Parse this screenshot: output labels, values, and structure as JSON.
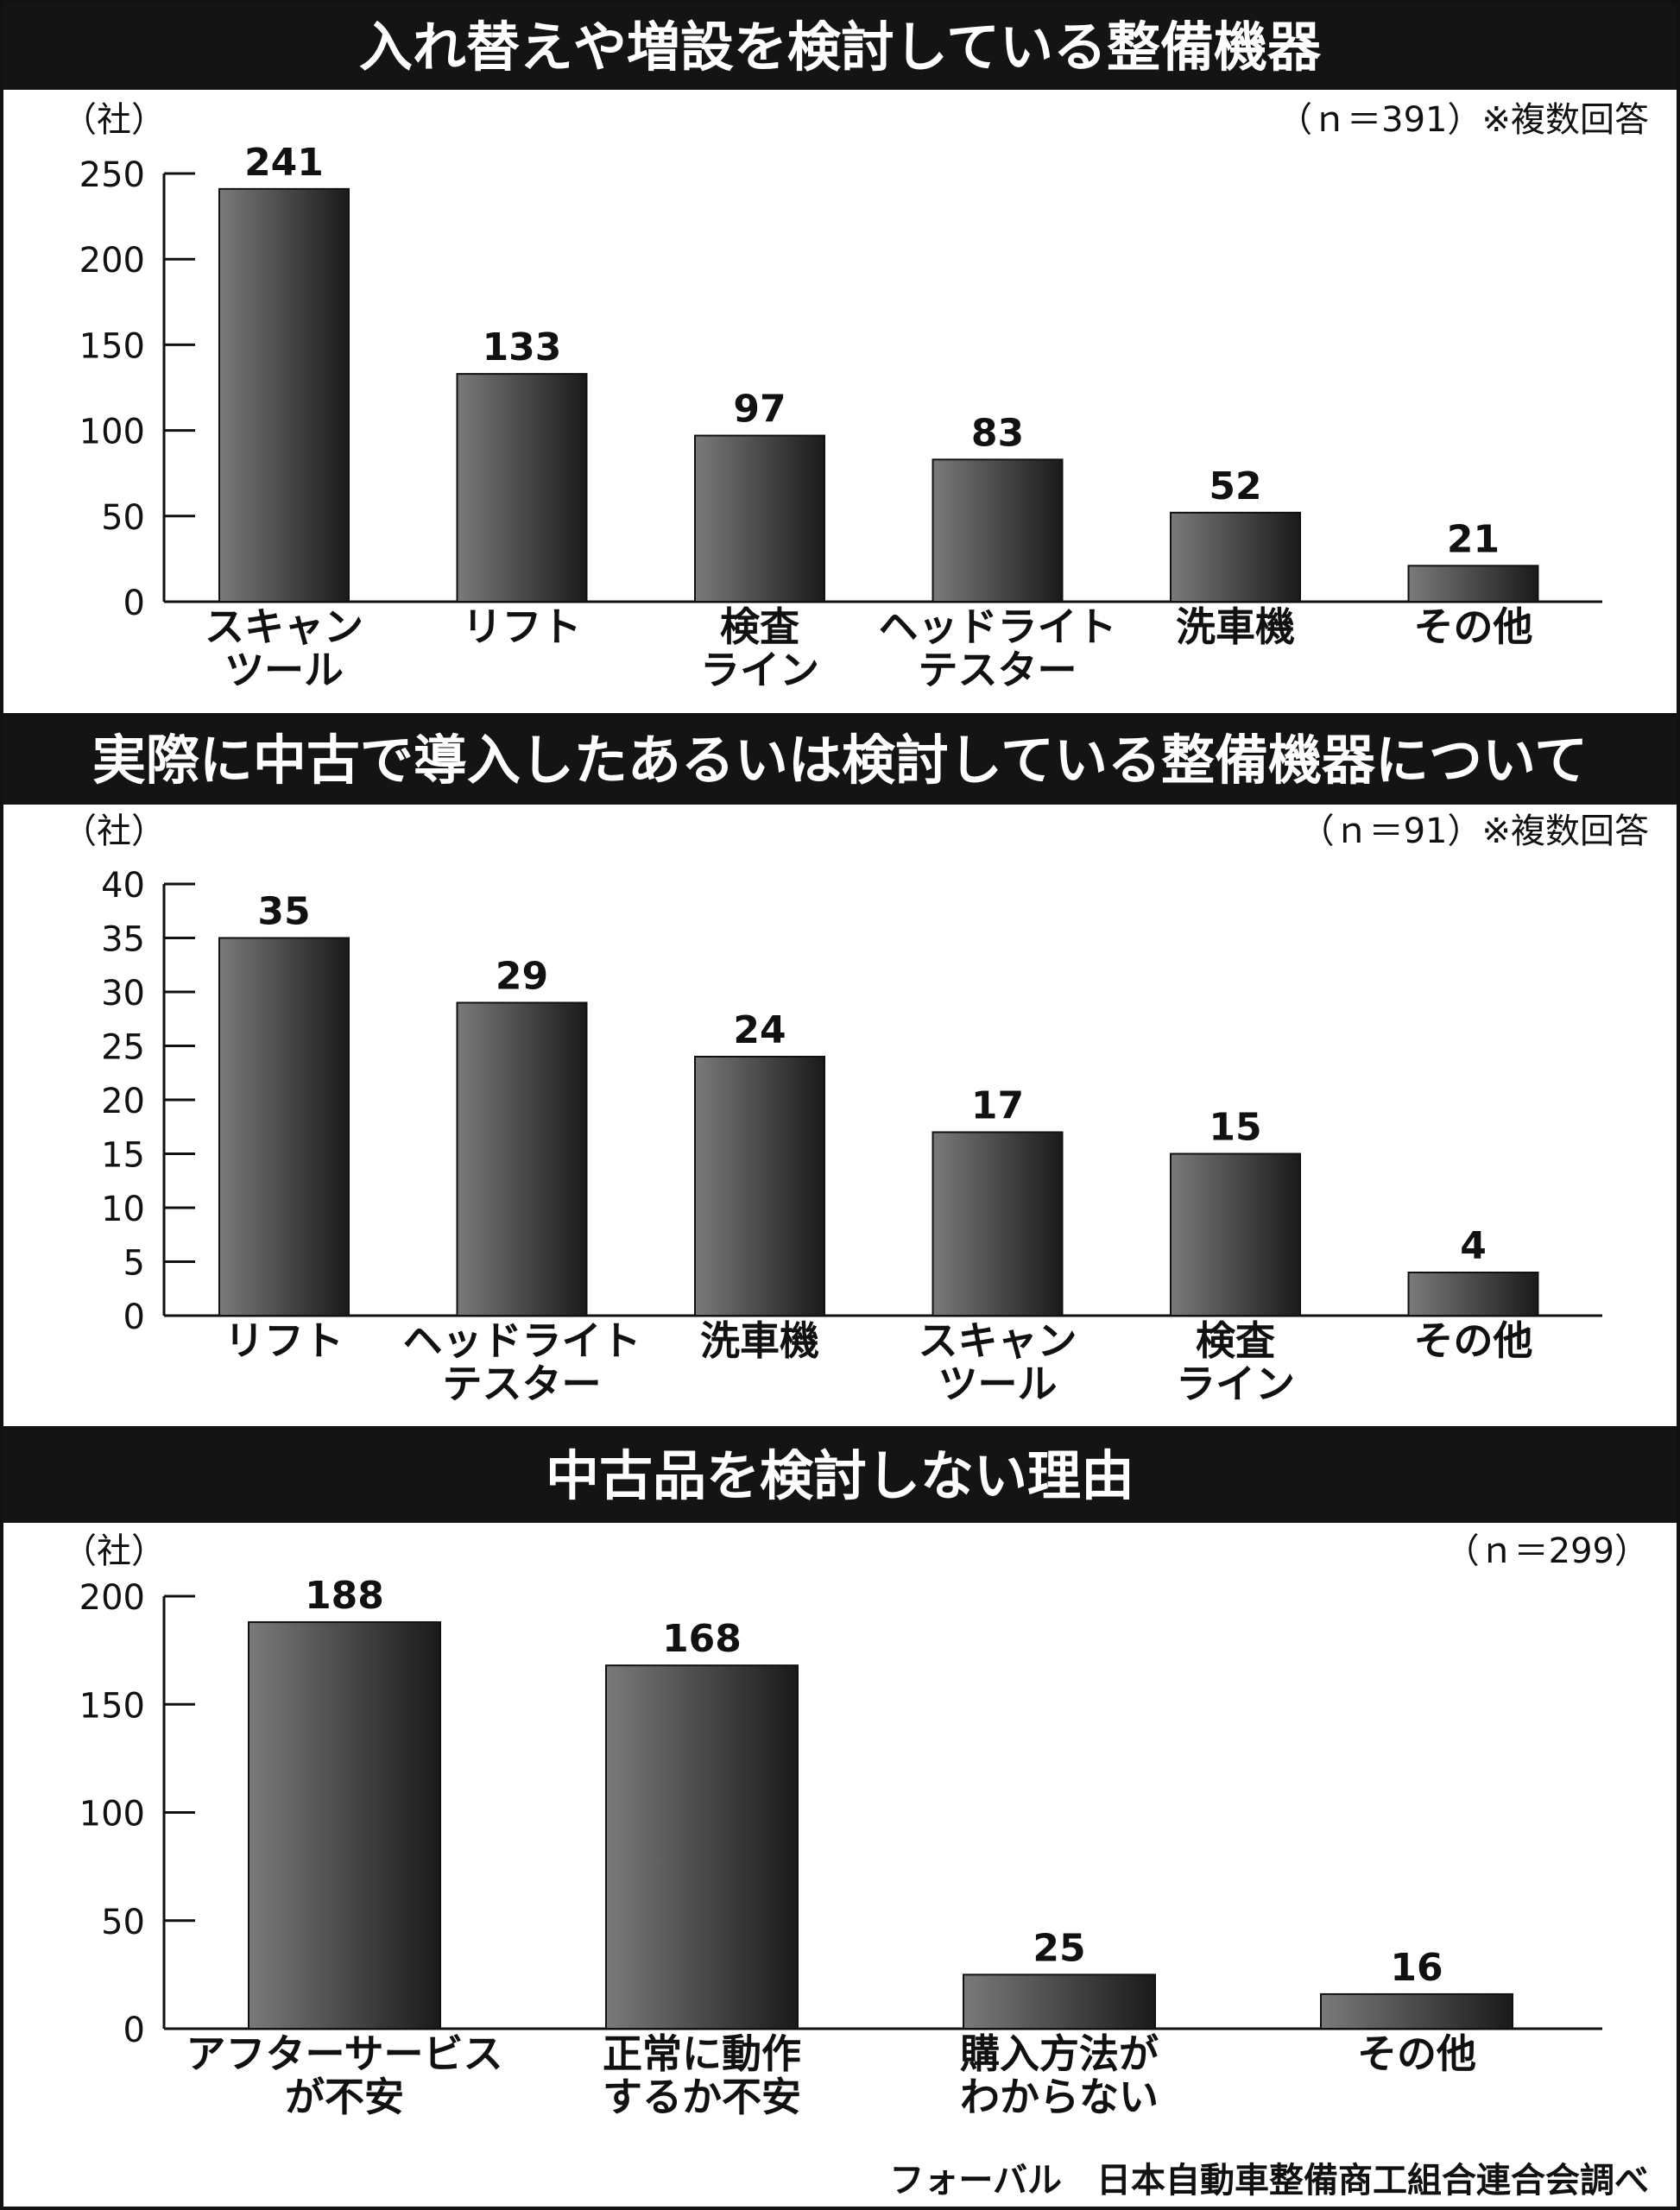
{
  "panels": [
    {
      "title": "入れ替えや増設を検討している整備機器",
      "note": "（ｎ＝391）※複数回答",
      "unit": "（社）"
    },
    {
      "title": "実際に中古で導入したあるいは検討している整備機器について",
      "note": "（ｎ＝91）※複数回答",
      "unit": "（社）"
    },
    {
      "title": "中古品を検討しない理由",
      "note": "（ｎ＝299）",
      "unit": "（社）"
    }
  ],
  "source": "フォーバル　日本自動車整備商工組合連合会調べ",
  "colors": {
    "bar_dark": "#1a1a1a",
    "bar_light": "#7a7a7a",
    "title_bg": "#141414",
    "title_text": "#ffffff"
  },
  "chart_data": [
    {
      "type": "bar",
      "title": "入れ替えや増設を検討している整備機器",
      "ylabel": "（社）",
      "ylim": [
        0,
        250
      ],
      "yticks": [
        0,
        50,
        100,
        150,
        200,
        250
      ],
      "categories": [
        "スキャン\nツール",
        "リフト",
        "検査\nライン",
        "ヘッドライト\nテスター",
        "洗車機",
        "その他"
      ],
      "values": [
        241,
        133,
        97,
        83,
        52,
        21
      ],
      "grid": false
    },
    {
      "type": "bar",
      "title": "実際に中古で導入したあるいは検討している整備機器について",
      "ylabel": "（社）",
      "ylim": [
        0,
        40
      ],
      "yticks": [
        0,
        5,
        10,
        15,
        20,
        25,
        30,
        35,
        40
      ],
      "categories": [
        "リフト",
        "ヘッドライト\nテスター",
        "洗車機",
        "スキャン\nツール",
        "検査\nライン",
        "その他"
      ],
      "values": [
        35,
        29,
        24,
        17,
        15,
        4
      ],
      "grid": false
    },
    {
      "type": "bar",
      "title": "中古品を検討しない理由",
      "ylabel": "（社）",
      "ylim": [
        0,
        200
      ],
      "yticks": [
        0,
        50,
        100,
        150,
        200
      ],
      "categories": [
        "アフターサービス\nが不安",
        "正常に動作\nするか不安",
        "購入方法が\nわからない",
        "その他"
      ],
      "values": [
        188,
        168,
        25,
        16
      ],
      "grid": false
    }
  ]
}
